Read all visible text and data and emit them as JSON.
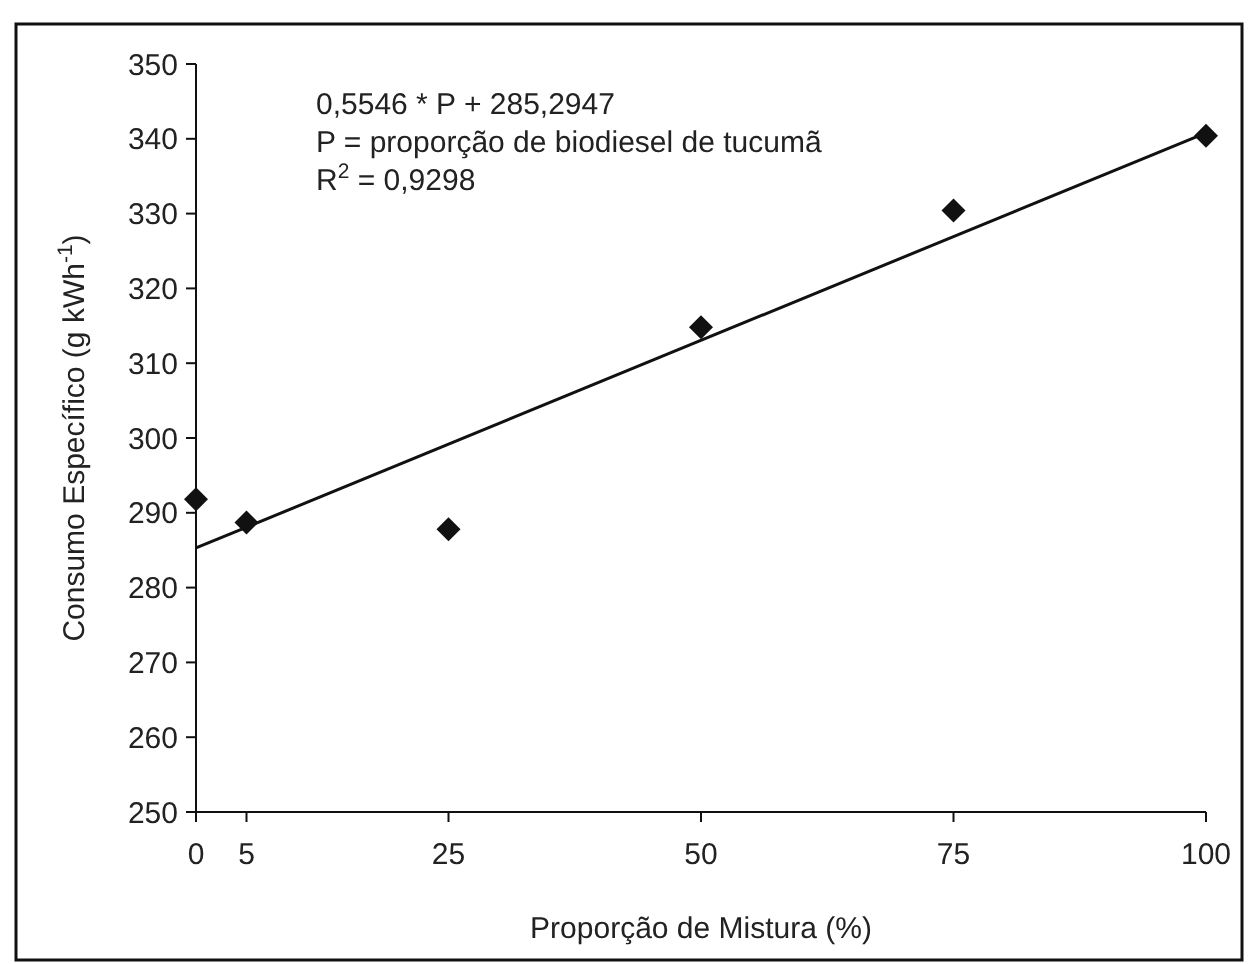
{
  "chart_data": {
    "type": "scatter",
    "xlabel": "Proporção de Mistura (%)",
    "ylabel": "Consumo Específico (g kWh$^{-1}$)",
    "annotations": [
      "0,5546 * P + 285,2947",
      "P = proporção de biodiesel de tucumã",
      "R$^{2}$ = 0,9298"
    ],
    "xlim": [
      0,
      100
    ],
    "xticks": [
      0,
      5,
      25,
      50,
      75,
      100
    ],
    "ylim": [
      250,
      350
    ],
    "yticks": [
      250,
      260,
      270,
      280,
      290,
      300,
      310,
      320,
      330,
      340,
      350
    ],
    "grid": false,
    "marker": "diamond",
    "series": [
      {
        "color": "#111111",
        "x": [
          0,
          5,
          25,
          50,
          75,
          100
        ],
        "values": [
          291.8,
          288.7,
          287.8,
          314.8,
          330.4,
          340.4
        ]
      },
      {
        "type": "line",
        "color": "#111111",
        "line_style": "solid",
        "marker": "none",
        "x": [
          0,
          100
        ],
        "values": [
          285.3,
          340.8
        ]
      }
    ]
  }
}
